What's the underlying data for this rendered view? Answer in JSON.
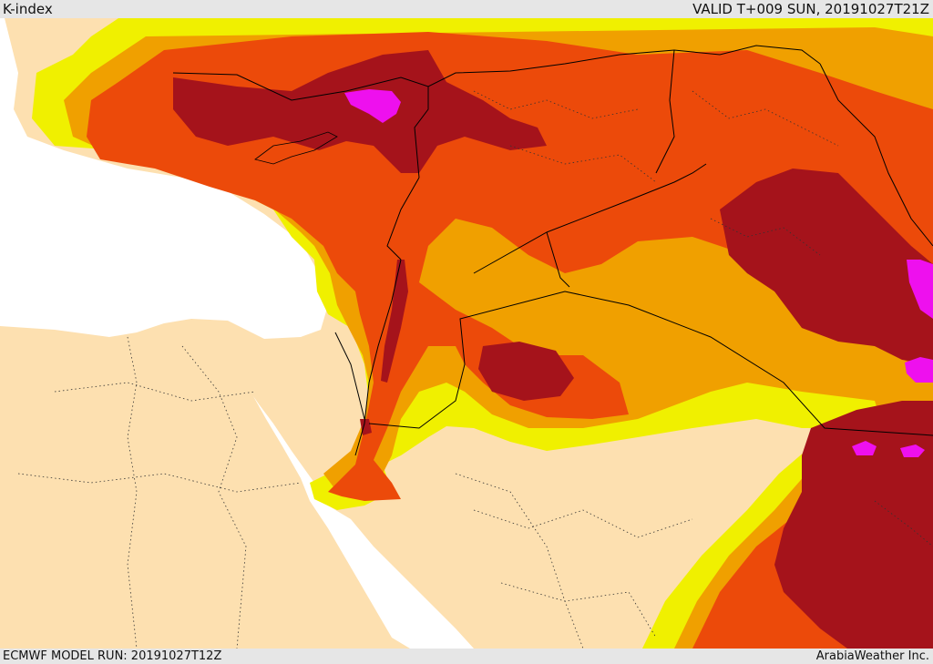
{
  "header": {
    "title": "K-index",
    "valid_time": "VALID T+009 SUN, 20191027T21Z"
  },
  "footer": {
    "model_run": "ECMWF MODEL RUN: 20191027T12Z",
    "credit": "ArabiaWeather Inc."
  },
  "colors": {
    "land": "#fde0b0",
    "sea": "#ffffff",
    "band_yellow": "#f0f000",
    "band_orange": "#f0a000",
    "band_red_orange": "#ec4a0a",
    "band_dark_red": "#a5131b",
    "band_magenta": "#ee10ee",
    "borders": "#000000"
  }
}
